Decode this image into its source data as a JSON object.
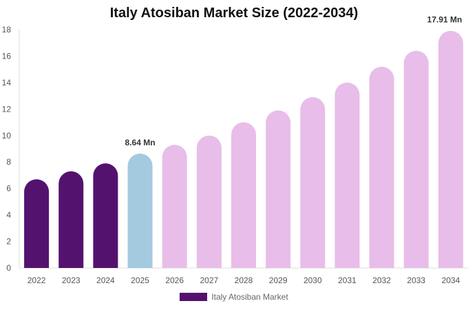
{
  "chart_data": {
    "type": "bar",
    "title": "Italy Atosiban Market Size (2022-2034)",
    "xlabel": "",
    "ylabel": "",
    "categories": [
      "2022",
      "2023",
      "2024",
      "2025",
      "2026",
      "2027",
      "2028",
      "2029",
      "2030",
      "2031",
      "2032",
      "2033",
      "2034"
    ],
    "series": [
      {
        "name": "Italy Atosiban Market",
        "values": [
          6.7,
          7.3,
          7.9,
          8.64,
          9.3,
          10.0,
          11.0,
          11.9,
          12.9,
          14.0,
          15.2,
          16.4,
          17.91
        ]
      }
    ],
    "data_labels": [
      {
        "category": "2025",
        "text": "8.64 Mn"
      },
      {
        "category": "2034",
        "text": "17.91 Mn"
      }
    ],
    "ylim": [
      0,
      18
    ],
    "yticks": [
      0,
      2,
      4,
      6,
      8,
      10,
      12,
      14,
      16,
      18
    ],
    "grid": false,
    "legend": "bottom-center",
    "colors": {
      "historical": "#54126f",
      "current": "#a4cadf",
      "forecast": "#e8bde9",
      "axis": "#dddddd"
    },
    "bar_color_groups": [
      "historical",
      "historical",
      "historical",
      "current",
      "forecast",
      "forecast",
      "forecast",
      "forecast",
      "forecast",
      "forecast",
      "forecast",
      "forecast",
      "forecast"
    ]
  }
}
